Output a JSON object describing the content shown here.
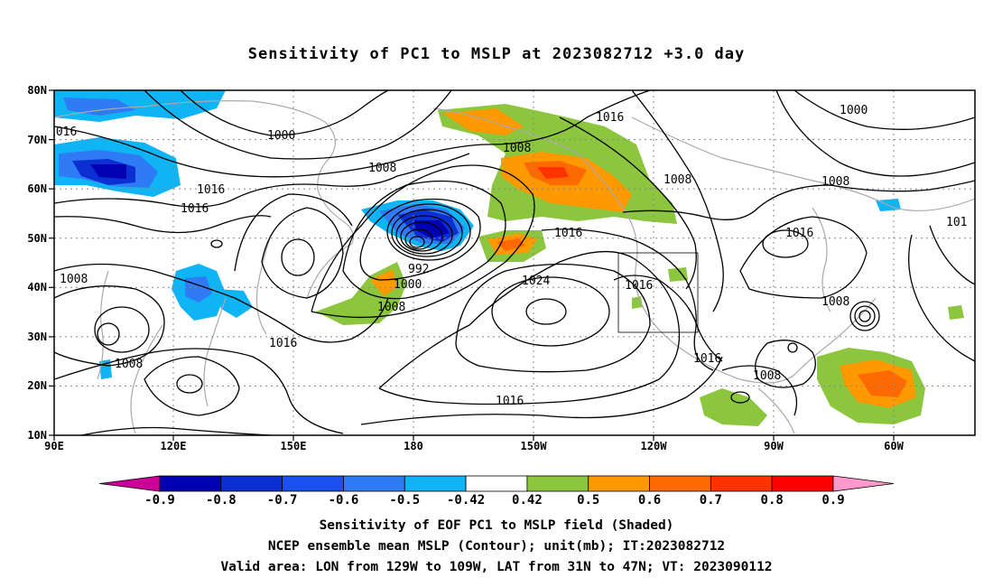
{
  "title": "Sensitivity of PC1 to MSLP at 2023082712 +3.0 day",
  "axes": {
    "lat_labels": [
      "80N",
      "70N",
      "60N",
      "50N",
      "40N",
      "30N",
      "20N",
      "10N"
    ],
    "lon_labels": [
      "90E",
      "120E",
      "150E",
      "180",
      "150W",
      "120W",
      "90W",
      "60W"
    ]
  },
  "colorbar": {
    "labels": [
      "-0.9",
      "-0.8",
      "-0.7",
      "-0.6",
      "-0.5",
      "-0.42",
      "0.42",
      "0.5",
      "0.6",
      "0.7",
      "0.8",
      "0.9"
    ],
    "colors": [
      "#cc0099",
      "#0000b3",
      "#0b2fd0",
      "#1a4ff0",
      "#2f7af5",
      "#0fb4f5",
      "#ffffff",
      "#8cc63f",
      "#ff9900",
      "#ff6a00",
      "#ff3300",
      "#ff0000",
      "#ff99cc"
    ]
  },
  "contour_labels": {
    "c1016_a": "1016",
    "c1000_a": "1000",
    "c1008_a": "1008",
    "c1016_b": "1016",
    "c1016_c": "1016",
    "c1008_b": "1008",
    "c1016_d": "1016",
    "c1008_c": "1008",
    "c992": "992",
    "c1000_b": "1000",
    "c1008_d": "1008",
    "c1024": "1024",
    "c1016_e": "1016",
    "c1016_f": "1016",
    "c1016_g": "1016",
    "c1008_e": "1008",
    "c1000_c": "1000",
    "c1008_f": "1008",
    "c1016_h": "1016",
    "c1008_g": "1008",
    "c1016_i": "1016",
    "c1008_h": "1008",
    "c101": "101"
  },
  "captions": {
    "line1": "Sensitivity of EOF PC1 to MSLP field (Shaded)",
    "line2": "NCEP ensemble mean MSLP (Contour); unit(mb); IT:2023082712",
    "line3": "Valid area: LON from 129W to 109W, LAT from 31N to 47N; VT: 2023090112"
  }
}
